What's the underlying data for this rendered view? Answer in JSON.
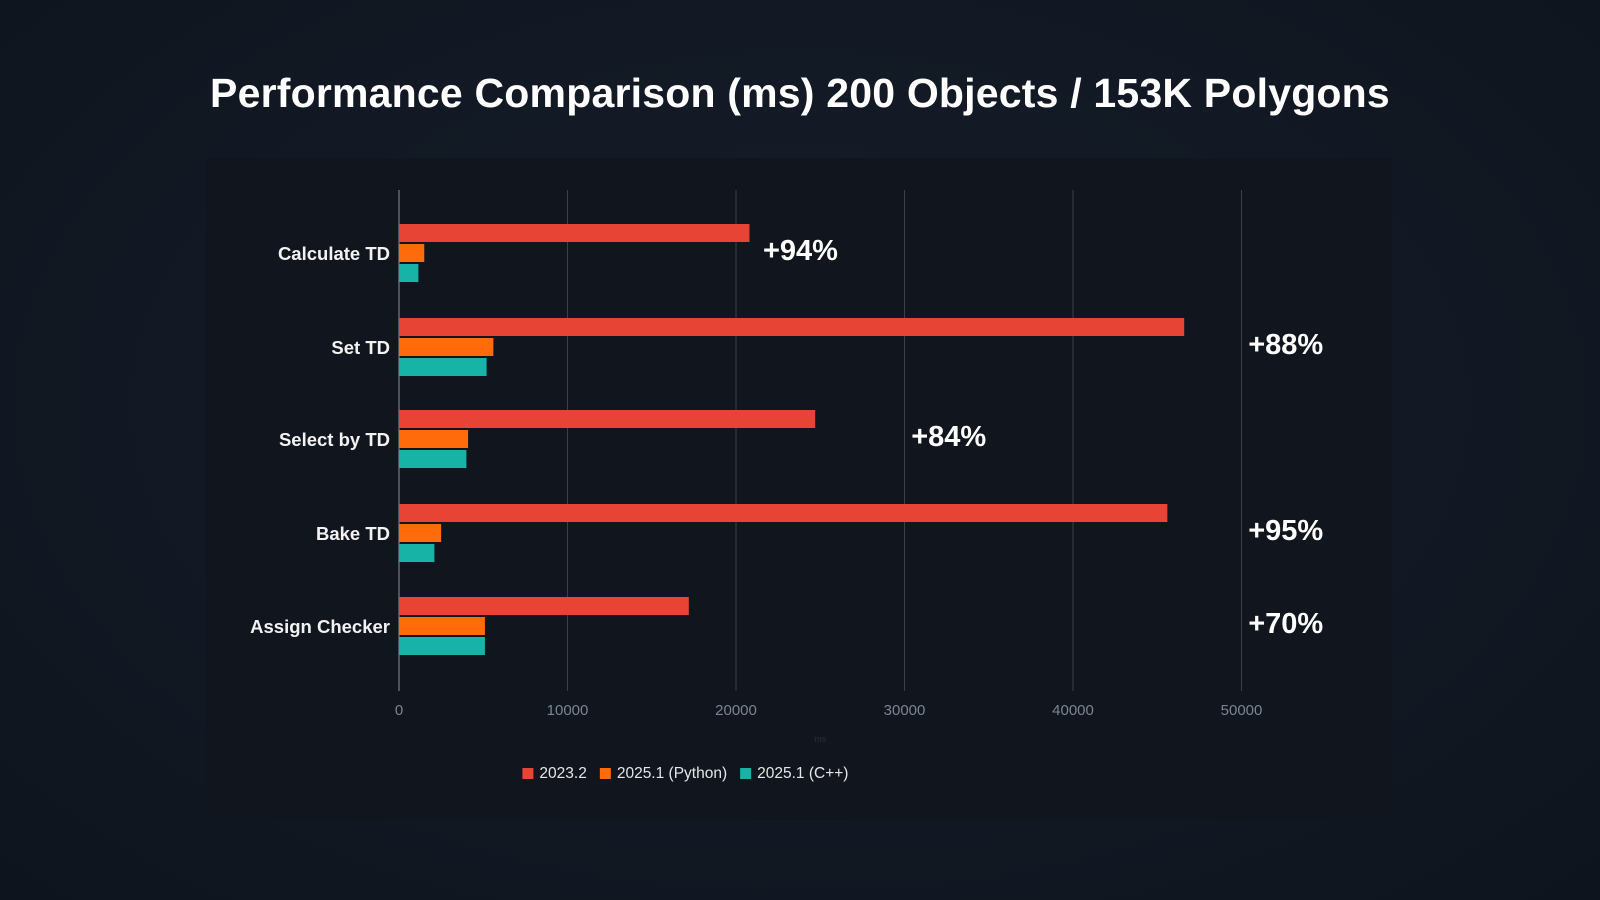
{
  "chart_data": {
    "type": "bar",
    "orientation": "horizontal",
    "title": "Performance Comparison (ms) 200 Objects / 153K Polygons",
    "xlabel": "ms",
    "ylabel": "",
    "xlim": [
      0,
      50000
    ],
    "ticks": [
      "0",
      "10000",
      "20000",
      "30000",
      "40000",
      "50000"
    ],
    "grid": true,
    "legend_position": "bottom",
    "categories": [
      "Calculate TD",
      "Set TD",
      "Select by TD",
      "Bake TD",
      "Assign Checker"
    ],
    "series": [
      {
        "name": "2023.2",
        "color": "#e84436",
        "values": [
          20800,
          46600,
          24700,
          45600,
          17200
        ]
      },
      {
        "name": "2025.1 (Python)",
        "color": "#ff6b0a",
        "values": [
          1500,
          5600,
          4100,
          2500,
          5100
        ]
      },
      {
        "name": "2025.1 (C++)",
        "color": "#17b3a6",
        "values": [
          1150,
          5200,
          4000,
          2100,
          5100
        ]
      }
    ],
    "annotations": [
      "+94%",
      "+88%",
      "+84%",
      "+95%",
      "+70%"
    ],
    "annotation_anchor_values": [
      21600,
      50400,
      30400,
      50400,
      50400
    ]
  },
  "colors": {
    "background": "#121924",
    "panel": "#10151e",
    "grid": "#3a404b",
    "text": "#ffffff"
  }
}
